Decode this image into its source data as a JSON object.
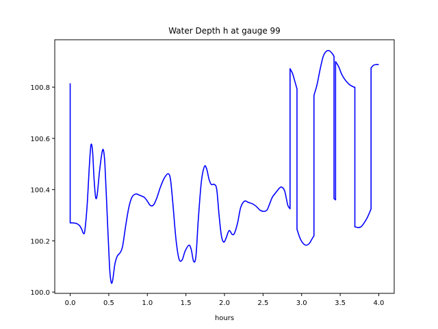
{
  "chart_data": {
    "type": "line",
    "title": "Water Depth h at gauge 99",
    "xlabel": "hours",
    "ylabel": "",
    "xlim": [
      -0.2,
      4.2
    ],
    "ylim": [
      99.995,
      100.985
    ],
    "grid": false,
    "x_ticks": [
      {
        "value": 0.0,
        "label": "0.0"
      },
      {
        "value": 0.5,
        "label": "0.5"
      },
      {
        "value": 1.0,
        "label": "1.0"
      },
      {
        "value": 1.5,
        "label": "1.5"
      },
      {
        "value": 2.0,
        "label": "2.0"
      },
      {
        "value": 2.5,
        "label": "2.5"
      },
      {
        "value": 3.0,
        "label": "3.0"
      },
      {
        "value": 3.5,
        "label": "3.5"
      },
      {
        "value": 4.0,
        "label": "4.0"
      }
    ],
    "y_ticks": [
      {
        "value": 100.0,
        "label": "100.0"
      },
      {
        "value": 100.2,
        "label": "100.2"
      },
      {
        "value": 100.4,
        "label": "100.4"
      },
      {
        "value": 100.6,
        "label": "100.6"
      },
      {
        "value": 100.8,
        "label": "100.8"
      }
    ],
    "series": [
      {
        "color": "#0000ff",
        "points": [
          [
            0.0,
            100.815
          ],
          [
            0.0,
            100.27
          ],
          [
            0.03,
            100.27
          ],
          [
            0.08,
            100.268
          ],
          [
            0.12,
            100.26
          ],
          [
            0.15,
            100.245
          ],
          [
            0.17,
            100.23
          ],
          [
            0.19,
            100.24
          ],
          [
            0.22,
            100.34
          ],
          [
            0.25,
            100.5
          ],
          [
            0.27,
            100.575
          ],
          [
            0.29,
            100.55
          ],
          [
            0.31,
            100.44
          ],
          [
            0.33,
            100.37
          ],
          [
            0.35,
            100.38
          ],
          [
            0.38,
            100.47
          ],
          [
            0.41,
            100.54
          ],
          [
            0.43,
            100.555
          ],
          [
            0.45,
            100.5
          ],
          [
            0.48,
            100.3
          ],
          [
            0.51,
            100.1
          ],
          [
            0.53,
            100.04
          ],
          [
            0.55,
            100.045
          ],
          [
            0.58,
            100.11
          ],
          [
            0.61,
            100.14
          ],
          [
            0.65,
            100.155
          ],
          [
            0.68,
            100.18
          ],
          [
            0.72,
            100.26
          ],
          [
            0.76,
            100.33
          ],
          [
            0.8,
            100.37
          ],
          [
            0.85,
            100.383
          ],
          [
            0.9,
            100.378
          ],
          [
            0.96,
            100.37
          ],
          [
            1.0,
            100.355
          ],
          [
            1.04,
            100.338
          ],
          [
            1.08,
            100.34
          ],
          [
            1.12,
            100.365
          ],
          [
            1.17,
            100.41
          ],
          [
            1.22,
            100.445
          ],
          [
            1.27,
            100.462
          ],
          [
            1.3,
            100.44
          ],
          [
            1.33,
            100.35
          ],
          [
            1.37,
            100.21
          ],
          [
            1.41,
            100.13
          ],
          [
            1.45,
            100.125
          ],
          [
            1.49,
            100.16
          ],
          [
            1.54,
            100.183
          ],
          [
            1.57,
            100.165
          ],
          [
            1.6,
            100.12
          ],
          [
            1.63,
            100.14
          ],
          [
            1.66,
            100.28
          ],
          [
            1.7,
            100.43
          ],
          [
            1.74,
            100.49
          ],
          [
            1.77,
            100.48
          ],
          [
            1.8,
            100.44
          ],
          [
            1.83,
            100.42
          ],
          [
            1.87,
            100.42
          ],
          [
            1.9,
            100.4
          ],
          [
            1.93,
            100.3
          ],
          [
            1.96,
            100.22
          ],
          [
            1.99,
            100.195
          ],
          [
            2.02,
            100.21
          ],
          [
            2.06,
            100.24
          ],
          [
            2.1,
            100.225
          ],
          [
            2.13,
            100.23
          ],
          [
            2.17,
            100.27
          ],
          [
            2.21,
            100.33
          ],
          [
            2.26,
            100.355
          ],
          [
            2.31,
            100.35
          ],
          [
            2.36,
            100.345
          ],
          [
            2.41,
            100.335
          ],
          [
            2.46,
            100.32
          ],
          [
            2.51,
            100.315
          ],
          [
            2.55,
            100.32
          ],
          [
            2.58,
            100.34
          ],
          [
            2.62,
            100.37
          ],
          [
            2.67,
            100.39
          ],
          [
            2.71,
            100.405
          ],
          [
            2.74,
            100.41
          ],
          [
            2.78,
            100.395
          ],
          [
            2.82,
            100.34
          ],
          [
            2.85,
            100.325
          ],
          [
            2.85,
            100.872
          ],
          [
            2.88,
            100.855
          ],
          [
            2.91,
            100.825
          ],
          [
            2.94,
            100.793
          ],
          [
            2.94,
            100.245
          ],
          [
            2.98,
            100.21
          ],
          [
            3.02,
            100.19
          ],
          [
            3.06,
            100.183
          ],
          [
            3.1,
            100.19
          ],
          [
            3.13,
            100.205
          ],
          [
            3.16,
            100.22
          ],
          [
            3.16,
            100.768
          ],
          [
            3.2,
            100.81
          ],
          [
            3.24,
            100.87
          ],
          [
            3.28,
            100.92
          ],
          [
            3.32,
            100.94
          ],
          [
            3.36,
            100.942
          ],
          [
            3.4,
            100.93
          ],
          [
            3.42,
            100.92
          ],
          [
            3.42,
            100.365
          ],
          [
            3.44,
            100.36
          ],
          [
            3.44,
            100.9
          ],
          [
            3.48,
            100.88
          ],
          [
            3.52,
            100.85
          ],
          [
            3.56,
            100.83
          ],
          [
            3.62,
            100.81
          ],
          [
            3.68,
            100.8
          ],
          [
            3.69,
            100.8
          ],
          [
            3.69,
            100.255
          ],
          [
            3.73,
            100.252
          ],
          [
            3.77,
            100.255
          ],
          [
            3.81,
            100.27
          ],
          [
            3.85,
            100.29
          ],
          [
            3.88,
            100.31
          ],
          [
            3.9,
            100.325
          ],
          [
            3.9,
            100.875
          ],
          [
            3.93,
            100.885
          ],
          [
            3.96,
            100.888
          ],
          [
            4.0,
            100.888
          ]
        ]
      }
    ]
  }
}
